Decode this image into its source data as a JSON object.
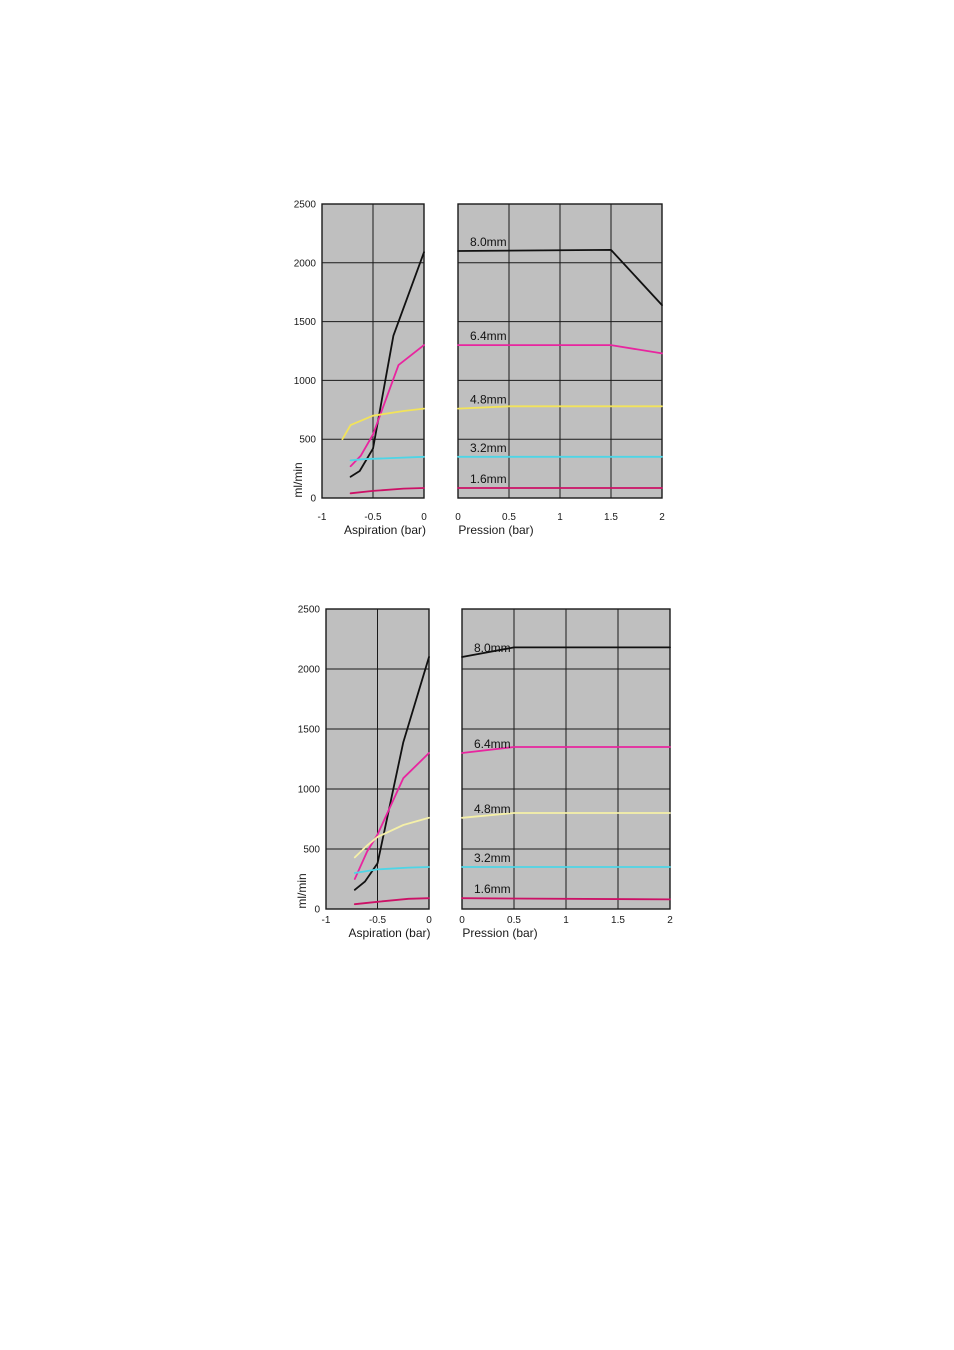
{
  "chart_data": [
    {
      "type": "line",
      "ylabel": "ml/min",
      "ylim": [
        0,
        2500
      ],
      "y_ticks": [
        "0",
        "500",
        "1000",
        "1500",
        "2000",
        "2500"
      ],
      "grid": true,
      "left": {
        "xlabel": "Aspiration (bar)",
        "xlim": [
          -1,
          0
        ],
        "x_ticks": [
          "-1",
          "-0.5",
          "0"
        ]
      },
      "right": {
        "xlabel": "Pression (bar)",
        "xlim": [
          0,
          2
        ],
        "x_ticks": [
          "0",
          "0.5",
          "1",
          "1.5",
          "2"
        ]
      },
      "series": [
        {
          "name": "8.0mm",
          "color": "#111111",
          "left": {
            "x": [
              -0.72,
              -0.63,
              -0.5,
              -0.3,
              0
            ],
            "y": [
              180,
              230,
              420,
              1380,
              2090
            ]
          },
          "right": {
            "x": [
              0,
              1.5,
              2
            ],
            "y": [
              2100,
              2110,
              1640
            ]
          }
        },
        {
          "name": "6.4mm",
          "color": "#e8259f",
          "left": {
            "x": [
              -0.72,
              -0.62,
              -0.5,
              -0.25,
              0
            ],
            "y": [
              270,
              360,
              540,
              1130,
              1300
            ]
          },
          "right": {
            "x": [
              0,
              1.5,
              2
            ],
            "y": [
              1300,
              1300,
              1230
            ]
          }
        },
        {
          "name": "4.8mm",
          "color": "#f2e35a",
          "left": {
            "x": [
              -0.8,
              -0.72,
              -0.5,
              -0.2,
              0
            ],
            "y": [
              500,
              620,
              700,
              740,
              760
            ]
          },
          "right": {
            "x": [
              0,
              0.5,
              2
            ],
            "y": [
              760,
              780,
              780
            ]
          }
        },
        {
          "name": "3.2mm",
          "color": "#4dd5e6",
          "left": {
            "x": [
              -0.72,
              -0.6,
              -0.3,
              0
            ],
            "y": [
              320,
              330,
              340,
              350
            ]
          },
          "right": {
            "x": [
              0,
              2
            ],
            "y": [
              350,
              350
            ]
          }
        },
        {
          "name": "1.6mm",
          "color": "#cc1166",
          "left": {
            "x": [
              -0.72,
              -0.5,
              -0.2,
              0
            ],
            "y": [
              40,
              60,
              80,
              85
            ]
          },
          "right": {
            "x": [
              0,
              2
            ],
            "y": [
              85,
              85
            ]
          }
        }
      ]
    },
    {
      "type": "line",
      "ylabel": "ml/min",
      "ylim": [
        0,
        2500
      ],
      "y_ticks": [
        "0",
        "500",
        "1000",
        "1500",
        "2000",
        "2500"
      ],
      "grid": true,
      "left": {
        "xlabel": "Aspiration (bar)",
        "xlim": [
          -1,
          0
        ],
        "x_ticks": [
          "-1",
          "-0.5",
          "0"
        ]
      },
      "right": {
        "xlabel": "Pression (bar)",
        "xlim": [
          0,
          2
        ],
        "x_ticks": [
          "0",
          "0.5",
          "1",
          "1.5",
          "2"
        ]
      },
      "series": [
        {
          "name": "8.0mm",
          "color": "#111111",
          "left": {
            "x": [
              -0.72,
              -0.62,
              -0.5,
              -0.25,
              0
            ],
            "y": [
              160,
              230,
              380,
              1390,
              2100
            ]
          },
          "right": {
            "x": [
              0,
              0.5,
              2
            ],
            "y": [
              2100,
              2180,
              2180
            ]
          }
        },
        {
          "name": "6.4mm",
          "color": "#e8259f",
          "left": {
            "x": [
              -0.72,
              -0.6,
              -0.5,
              -0.25,
              0
            ],
            "y": [
              250,
              480,
              620,
              1090,
              1300
            ]
          },
          "right": {
            "x": [
              0,
              0.5,
              2
            ],
            "y": [
              1300,
              1350,
              1350
            ]
          }
        },
        {
          "name": "4.8mm",
          "color": "#f5f0a8",
          "left": {
            "x": [
              -0.72,
              -0.6,
              -0.5,
              -0.25,
              0
            ],
            "y": [
              430,
              530,
              600,
              700,
              760
            ]
          },
          "right": {
            "x": [
              0,
              0.5,
              2
            ],
            "y": [
              760,
              800,
              800
            ]
          }
        },
        {
          "name": "3.2mm",
          "color": "#4dd5e6",
          "left": {
            "x": [
              -0.72,
              -0.5,
              -0.2,
              0
            ],
            "y": [
              300,
              330,
              345,
              350
            ]
          },
          "right": {
            "x": [
              0,
              2
            ],
            "y": [
              350,
              350
            ]
          }
        },
        {
          "name": "1.6mm",
          "color": "#cc1166",
          "left": {
            "x": [
              -0.72,
              -0.5,
              -0.2,
              0
            ],
            "y": [
              40,
              60,
              85,
              90
            ]
          },
          "right": {
            "x": [
              0,
              2
            ],
            "y": [
              90,
              80
            ]
          }
        }
      ]
    }
  ]
}
